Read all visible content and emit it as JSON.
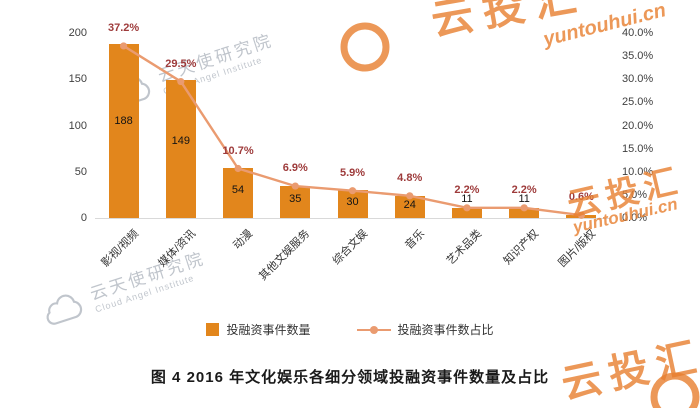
{
  "caption": "图 4  2016 年文化娱乐各细分领域投融资事件数量及占比",
  "legend": {
    "bars_label": "投融资事件数量",
    "line_label": "投融资事件数占比"
  },
  "watermarks": {
    "gray_cn": "云天使研究院",
    "gray_en": "Cloud Angel Institute",
    "orange_cn": "云投汇",
    "orange_en": "yuntouhui.cn"
  },
  "colors": {
    "bar": "#E2861C",
    "line": "#EA9B70",
    "pct_label": "#9E3B3B",
    "axis_text": "#404040",
    "watermark_gray": "#B6BCC4",
    "watermark_orange": "#E87F2F"
  },
  "chart_data": {
    "type": "bar",
    "subtype": "combo-bar-line",
    "title": "图 4  2016 年文化娱乐各细分领域投融资事件数量及占比",
    "categories": [
      "影视/视频",
      "媒体/资讯",
      "动漫",
      "其他文娱服务",
      "综合文娱",
      "音乐",
      "艺术品类",
      "知识产权",
      "图片/版权"
    ],
    "series": [
      {
        "name": "投融资事件数量",
        "type": "bar",
        "axis": "left",
        "values": [
          188,
          149,
          54,
          35,
          30,
          24,
          11,
          11,
          3
        ]
      },
      {
        "name": "投融资事件数占比",
        "type": "line",
        "axis": "right",
        "unit": "%",
        "values": [
          37.2,
          29.5,
          10.7,
          6.9,
          5.9,
          4.8,
          2.2,
          2.2,
          0.6
        ]
      }
    ],
    "bar_labels": [
      "188",
      "149",
      "54",
      "35",
      "30",
      "24",
      "11",
      "11",
      ""
    ],
    "pct_labels": [
      "37.2%",
      "29.5%",
      "10.7%",
      "6.9%",
      "5.9%",
      "4.8%",
      "2.2%",
      "2.2%",
      "0.6%"
    ],
    "left_axis": {
      "ticks": [
        0,
        50,
        100,
        150,
        200
      ],
      "max": 200
    },
    "right_axis": {
      "ticks": [
        "0.0%",
        "5.0%",
        "10.0%",
        "15.0%",
        "20.0%",
        "25.0%",
        "30.0%",
        "35.0%",
        "40.0%"
      ],
      "max": 40
    },
    "grid": false,
    "legend_position": "bottom"
  }
}
